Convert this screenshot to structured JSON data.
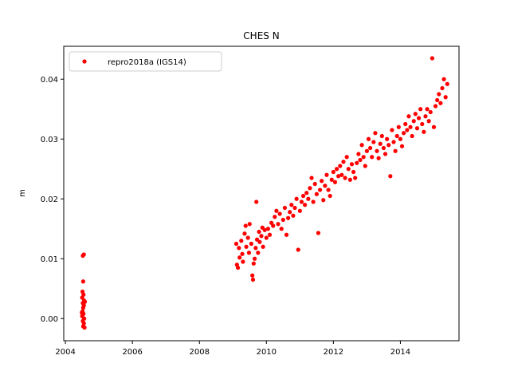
{
  "chart_data": {
    "type": "scatter",
    "title": "CHES N",
    "xlabel": "",
    "ylabel": "m",
    "xlim": [
      2003.95,
      2015.75
    ],
    "ylim": [
      -0.0037,
      0.0455
    ],
    "x_ticks": [
      2004,
      2006,
      2008,
      2010,
      2012,
      2014
    ],
    "x_tick_labels": [
      "2004",
      "2006",
      "2008",
      "2010",
      "2012",
      "2014"
    ],
    "y_ticks": [
      0.0,
      0.01,
      0.02,
      0.03,
      0.04
    ],
    "y_tick_labels": [
      "0.00",
      "0.01",
      "0.02",
      "0.03",
      "0.04"
    ],
    "grid": false,
    "legend_position": "top-left",
    "series": [
      {
        "name": "repro2018a (IGS14)",
        "color": "#ff0000",
        "marker": "circle",
        "points": [
          [
            2004.52,
            0.0105
          ],
          [
            2004.55,
            0.0107
          ],
          [
            2004.53,
            0.0062
          ],
          [
            2004.51,
            0.0045
          ],
          [
            2004.54,
            0.004
          ],
          [
            2004.5,
            0.0035
          ],
          [
            2004.56,
            0.003
          ],
          [
            2004.52,
            0.0026
          ],
          [
            2004.55,
            0.0022
          ],
          [
            2004.53,
            0.0018
          ],
          [
            2004.51,
            0.0012
          ],
          [
            2004.54,
            0.0008
          ],
          [
            2004.5,
            0.0004
          ],
          [
            2004.56,
            0.0
          ],
          [
            2004.52,
            -0.0004
          ],
          [
            2004.55,
            -0.0008
          ],
          [
            2004.53,
            -0.0013
          ],
          [
            2004.57,
            -0.0015
          ],
          [
            2004.49,
            0.001
          ],
          [
            2004.58,
            0.0028
          ],
          [
            2009.1,
            0.0125
          ],
          [
            2009.12,
            0.009
          ],
          [
            2009.15,
            0.0085
          ],
          [
            2009.18,
            0.0118
          ],
          [
            2009.2,
            0.0102
          ],
          [
            2009.25,
            0.013
          ],
          [
            2009.28,
            0.0108
          ],
          [
            2009.3,
            0.0095
          ],
          [
            2009.35,
            0.0142
          ],
          [
            2009.38,
            0.0155
          ],
          [
            2009.4,
            0.012
          ],
          [
            2009.45,
            0.0135
          ],
          [
            2009.48,
            0.011
          ],
          [
            2009.5,
            0.0158
          ],
          [
            2009.55,
            0.0125
          ],
          [
            2009.58,
            0.0072
          ],
          [
            2009.6,
            0.0065
          ],
          [
            2009.62,
            0.0092
          ],
          [
            2009.65,
            0.01
          ],
          [
            2009.68,
            0.0118
          ],
          [
            2009.7,
            0.0195
          ],
          [
            2009.72,
            0.0132
          ],
          [
            2009.75,
            0.011
          ],
          [
            2009.78,
            0.0145
          ],
          [
            2009.8,
            0.0128
          ],
          [
            2009.85,
            0.0138
          ],
          [
            2009.88,
            0.0152
          ],
          [
            2009.9,
            0.012
          ],
          [
            2009.95,
            0.0148
          ],
          [
            2010.0,
            0.0135
          ],
          [
            2010.05,
            0.015
          ],
          [
            2010.1,
            0.014
          ],
          [
            2010.15,
            0.016
          ],
          [
            2010.2,
            0.0155
          ],
          [
            2010.25,
            0.017
          ],
          [
            2010.3,
            0.018
          ],
          [
            2010.35,
            0.0158
          ],
          [
            2010.4,
            0.0175
          ],
          [
            2010.45,
            0.015
          ],
          [
            2010.5,
            0.0165
          ],
          [
            2010.55,
            0.0185
          ],
          [
            2010.6,
            0.014
          ],
          [
            2010.65,
            0.0168
          ],
          [
            2010.7,
            0.0178
          ],
          [
            2010.75,
            0.019
          ],
          [
            2010.8,
            0.0172
          ],
          [
            2010.85,
            0.0185
          ],
          [
            2010.9,
            0.02
          ],
          [
            2010.95,
            0.0115
          ],
          [
            2011.0,
            0.018
          ],
          [
            2011.05,
            0.0195
          ],
          [
            2011.1,
            0.0205
          ],
          [
            2011.15,
            0.019
          ],
          [
            2011.2,
            0.021
          ],
          [
            2011.25,
            0.02
          ],
          [
            2011.3,
            0.0218
          ],
          [
            2011.35,
            0.0235
          ],
          [
            2011.4,
            0.0195
          ],
          [
            2011.45,
            0.0225
          ],
          [
            2011.5,
            0.0208
          ],
          [
            2011.55,
            0.0143
          ],
          [
            2011.6,
            0.0215
          ],
          [
            2011.65,
            0.023
          ],
          [
            2011.7,
            0.0198
          ],
          [
            2011.75,
            0.0222
          ],
          [
            2011.8,
            0.024
          ],
          [
            2011.85,
            0.0215
          ],
          [
            2011.9,
            0.0205
          ],
          [
            2011.95,
            0.0232
          ],
          [
            2012.0,
            0.0245
          ],
          [
            2012.05,
            0.0228
          ],
          [
            2012.1,
            0.025
          ],
          [
            2012.15,
            0.0238
          ],
          [
            2012.2,
            0.0255
          ],
          [
            2012.25,
            0.024
          ],
          [
            2012.3,
            0.0262
          ],
          [
            2012.35,
            0.0235
          ],
          [
            2012.4,
            0.027
          ],
          [
            2012.45,
            0.025
          ],
          [
            2012.5,
            0.0232
          ],
          [
            2012.55,
            0.0258
          ],
          [
            2012.6,
            0.0245
          ],
          [
            2012.65,
            0.0235
          ],
          [
            2012.7,
            0.026
          ],
          [
            2012.75,
            0.0275
          ],
          [
            2012.8,
            0.0265
          ],
          [
            2012.85,
            0.029
          ],
          [
            2012.9,
            0.027
          ],
          [
            2012.95,
            0.0255
          ],
          [
            2013.0,
            0.028
          ],
          [
            2013.05,
            0.03
          ],
          [
            2013.1,
            0.0285
          ],
          [
            2013.15,
            0.027
          ],
          [
            2013.2,
            0.0295
          ],
          [
            2013.25,
            0.031
          ],
          [
            2013.3,
            0.028
          ],
          [
            2013.35,
            0.0268
          ],
          [
            2013.4,
            0.0292
          ],
          [
            2013.45,
            0.0305
          ],
          [
            2013.5,
            0.0285
          ],
          [
            2013.55,
            0.0275
          ],
          [
            2013.6,
            0.03
          ],
          [
            2013.65,
            0.029
          ],
          [
            2013.7,
            0.0238
          ],
          [
            2013.75,
            0.0315
          ],
          [
            2013.8,
            0.0295
          ],
          [
            2013.85,
            0.028
          ],
          [
            2013.9,
            0.0305
          ],
          [
            2013.95,
            0.032
          ],
          [
            2014.0,
            0.03
          ],
          [
            2014.05,
            0.0288
          ],
          [
            2014.1,
            0.031
          ],
          [
            2014.15,
            0.0325
          ],
          [
            2014.2,
            0.0315
          ],
          [
            2014.25,
            0.0338
          ],
          [
            2014.3,
            0.032
          ],
          [
            2014.35,
            0.0305
          ],
          [
            2014.4,
            0.033
          ],
          [
            2014.45,
            0.0342
          ],
          [
            2014.5,
            0.0318
          ],
          [
            2014.55,
            0.0335
          ],
          [
            2014.6,
            0.035
          ],
          [
            2014.65,
            0.0325
          ],
          [
            2014.7,
            0.0312
          ],
          [
            2014.75,
            0.0338
          ],
          [
            2014.8,
            0.035
          ],
          [
            2014.85,
            0.033
          ],
          [
            2014.9,
            0.0345
          ],
          [
            2014.95,
            0.0435
          ],
          [
            2015.0,
            0.032
          ],
          [
            2015.05,
            0.0355
          ],
          [
            2015.1,
            0.0365
          ],
          [
            2015.15,
            0.0375
          ],
          [
            2015.2,
            0.036
          ],
          [
            2015.25,
            0.0385
          ],
          [
            2015.3,
            0.04
          ],
          [
            2015.35,
            0.037
          ],
          [
            2015.4,
            0.0392
          ]
        ]
      }
    ]
  }
}
